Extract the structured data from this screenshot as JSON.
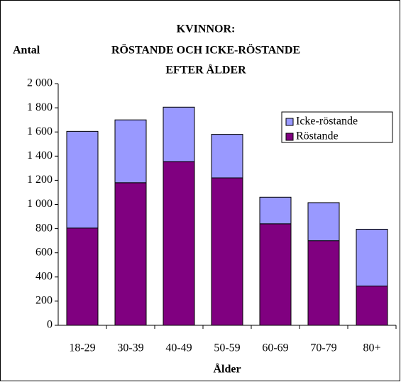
{
  "chart_data": {
    "type": "stacked_bar",
    "title": [
      "KVINNOR:",
      "RÖSTANDE OCH ICKE-RÖSTANDE",
      "EFTER ÅLDER"
    ],
    "y_label": "Antal",
    "x_label": "Ålder",
    "categories": [
      "18-29",
      "30-39",
      "40-49",
      "50-59",
      "60-69",
      "70-79",
      "80+"
    ],
    "series": [
      {
        "name": "Röstande",
        "color": "#800080",
        "values": [
          805,
          1180,
          1355,
          1220,
          840,
          700,
          325
        ]
      },
      {
        "name": "Icke-röstande",
        "color": "#9999ff",
        "values": [
          800,
          520,
          450,
          360,
          220,
          315,
          470
        ]
      }
    ],
    "ylim": [
      0,
      2000
    ],
    "yticks": [
      0,
      200,
      400,
      600,
      800,
      {
        "value": 1000,
        "label": "1 000"
      },
      {
        "value": 1200,
        "label": "1 200"
      },
      {
        "value": 1400,
        "label": "1 400"
      },
      {
        "value": 1600,
        "label": "1 600"
      },
      {
        "value": 1800,
        "label": "1 800"
      },
      {
        "value": 2000,
        "label": "2 000"
      }
    ],
    "legend": "top-right"
  }
}
